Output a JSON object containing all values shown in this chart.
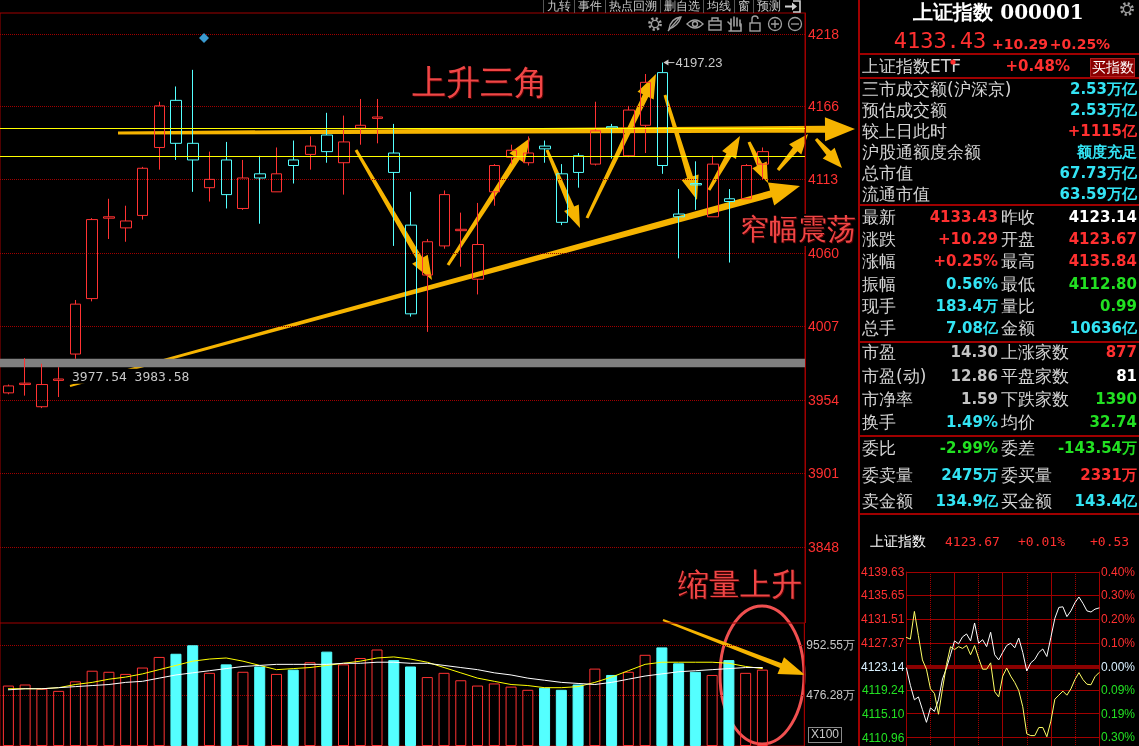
{
  "chart_data": [
    {
      "type": "candlestick",
      "categories": [
        null,
        null,
        null,
        null,
        null,
        null,
        null,
        null,
        null,
        null,
        null,
        null,
        null,
        null,
        null,
        null,
        null,
        null,
        null,
        null,
        null,
        null,
        null,
        null,
        null,
        null,
        null,
        null,
        null,
        null,
        null,
        null,
        null,
        null,
        null,
        null,
        null,
        null,
        null,
        null,
        null,
        null,
        null,
        null,
        null,
        null,
        null,
        null
      ],
      "ohlc": [
        [
          3959,
          3965,
          3958,
          3964
        ],
        [
          3965,
          3984,
          3957,
          3966
        ],
        [
          3949,
          3980,
          3948,
          3965
        ],
        [
          3968,
          3977.54,
          3956,
          3969
        ],
        [
          3987,
          4026,
          3983.58,
          4023
        ],
        [
          4027,
          4085,
          4025,
          4084
        ],
        [
          4085,
          4099,
          4070,
          4086
        ],
        [
          4078,
          4094,
          4068,
          4083
        ],
        [
          4087,
          4122,
          4084,
          4121
        ],
        [
          4136,
          4169,
          4120,
          4166
        ],
        [
          4170,
          4180,
          4127,
          4139
        ],
        [
          4139,
          4192,
          4104,
          4127
        ],
        [
          4107,
          4133,
          4097,
          4113
        ],
        [
          4127,
          4140,
          4092,
          4102
        ],
        [
          4092,
          4127,
          4091,
          4114
        ],
        [
          4117,
          4130,
          4081,
          4114
        ],
        [
          4104,
          4136,
          4104,
          4117
        ],
        [
          4127,
          4141,
          4110,
          4123
        ],
        [
          4131,
          4144,
          4120,
          4137
        ],
        [
          4145,
          4161,
          4125,
          4133
        ],
        [
          4125,
          4159,
          4102,
          4140
        ],
        [
          4150,
          4171,
          4138,
          4152
        ],
        [
          4157,
          4171,
          4139,
          4158
        ],
        [
          4132,
          4153,
          4065,
          4118
        ],
        [
          4080,
          4104,
          4014,
          4016
        ],
        [
          4044,
          4070,
          4003,
          4068
        ],
        [
          4065,
          4105,
          4063,
          4102
        ],
        [
          4076,
          4089,
          4050,
          4077
        ],
        [
          4041,
          4096,
          4030,
          4066
        ],
        [
          4104,
          4124,
          4094,
          4123
        ],
        [
          4129,
          4138,
          4124,
          4134
        ],
        [
          4125,
          4144,
          4123,
          4132
        ],
        [
          4137,
          4141,
          4125,
          4135
        ],
        [
          4117,
          4124,
          4080,
          4082
        ],
        [
          4130,
          4132,
          4107,
          4118
        ],
        [
          4124,
          4169,
          4123,
          4148
        ],
        [
          4151,
          4153,
          4128,
          4150
        ],
        [
          4130,
          4166,
          4129,
          4163
        ],
        [
          4152,
          4189,
          4132,
          4183
        ],
        [
          4190,
          4197.23,
          4117,
          4123
        ],
        [
          4088,
          4106,
          4056,
          4086
        ],
        [
          4110,
          4126,
          4091,
          4109
        ],
        [
          4086,
          4130,
          4086,
          4124
        ],
        [
          4099,
          4106,
          4053,
          4097
        ],
        [
          4099,
          4124,
          4099,
          4123
        ],
        [
          4124,
          4136,
          4113,
          4133
        ],
        null,
        null
      ],
      "colors": [
        "#ff3232",
        "#ff3232",
        "#ff3232",
        "#ff3232",
        "#ff3232",
        "#ff3232",
        "#ff3232",
        "#ff3232",
        "#ff3232",
        "#ff3232",
        "#54ffff",
        "#54ffff",
        "#ff3232",
        "#54ffff",
        "#ff3232",
        "#54ffff",
        "#ff3232",
        "#54ffff",
        "#ff3232",
        "#54ffff",
        "#ff3232",
        "#ff3232",
        "#ff3232",
        "#54ffff",
        "#54ffff",
        "#ff3232",
        "#ff3232",
        "#ff3232",
        "#ff3232",
        "#ff3232",
        "#ff3232",
        "#ff3232",
        "#54ffff",
        "#54ffff",
        "#54ffff",
        "#ff3232",
        "#54ffff",
        "#ff3232",
        "#ff3232",
        "#54ffff",
        "#54ffff",
        "#54ffff",
        "#ff3232",
        "#54ffff",
        "#ff3232",
        "#ff3232",
        null,
        null
      ],
      "ylim": [
        3793,
        4233
      ],
      "yticks": [
        4218,
        4166,
        4113,
        4060,
        4007,
        3954,
        3901,
        3848
      ],
      "grid": "y",
      "tick_labels": "y",
      "ref_lines": [
        {
          "axis": "y",
          "value": 4150,
          "color": "#ffff00"
        },
        {
          "axis": "y",
          "value": 4130,
          "color": "#ffff00"
        }
      ],
      "bands": [
        {
          "axis": "y",
          "from": 3977.54,
          "to": 3983.58,
          "label": "3977.54 3983.58",
          "color": "#808080"
        }
      ],
      "annotations": [
        "上升三角",
        "窄幅震荡",
        "4197.23",
        "九转",
        "事件",
        "热点回溯",
        "删自选",
        "均线",
        "窗",
        "预测"
      ]
    },
    {
      "type": "bar",
      "categories": [
        null,
        null,
        null,
        null,
        null,
        null,
        null,
        null,
        null,
        null,
        null,
        null,
        null,
        null,
        null,
        null,
        null,
        null,
        null,
        null,
        null,
        null,
        null,
        null,
        null,
        null,
        null,
        null,
        null,
        null,
        null,
        null,
        null,
        null,
        null,
        null,
        null,
        null,
        null,
        null,
        null,
        null,
        null,
        null,
        null,
        null,
        null,
        null
      ],
      "series": [
        {
          "type": "bar",
          "colors": [
            "#ff3232",
            "#ff3232",
            "#ff3232",
            "#ff3232",
            "#ff3232",
            "#ff3232",
            "#ff3232",
            "#ff3232",
            "#ff3232",
            "#ff3232",
            "#54ffff",
            "#54ffff",
            "#ff3232",
            "#54ffff",
            "#ff3232",
            "#54ffff",
            "#ff3232",
            "#54ffff",
            "#ff3232",
            "#54ffff",
            "#ff3232",
            "#ff3232",
            "#ff3232",
            "#54ffff",
            "#54ffff",
            "#ff3232",
            "#ff3232",
            "#ff3232",
            "#ff3232",
            "#ff3232",
            "#ff3232",
            "#ff3232",
            "#54ffff",
            "#54ffff",
            "#54ffff",
            "#ff3232",
            "#54ffff",
            "#ff3232",
            "#ff3232",
            "#54ffff",
            "#54ffff",
            "#54ffff",
            "#ff3232",
            "#54ffff",
            "#ff3232",
            "#ff3232",
            null,
            null
          ],
          "values": [
            570,
            580,
            540,
            520,
            610,
            710,
            700,
            680,
            740,
            840,
            870,
            950,
            690,
            770,
            700,
            750,
            680,
            720,
            790,
            890,
            770,
            830,
            910,
            810,
            750,
            650,
            690,
            620,
            570,
            590,
            560,
            530,
            550,
            530,
            580,
            730,
            670,
            700,
            860,
            930,
            780,
            700,
            670,
            810,
            690,
            720,
            null,
            null
          ]
        },
        {
          "type": "line",
          "color": "#ffff00",
          "values": [
            540,
            540,
            540,
            550,
            580,
            600,
            630,
            650,
            680,
            720,
            760,
            800,
            820,
            830,
            800,
            760,
            720,
            730,
            740,
            760,
            780,
            800,
            830,
            840,
            820,
            790,
            740,
            690,
            640,
            610,
            580,
            570,
            550,
            550,
            560,
            600,
            650,
            710,
            770,
            790,
            790,
            790,
            790,
            780,
            750,
            730,
            null,
            null
          ]
        },
        {
          "type": "line",
          "color": "#ffffff",
          "values": [
            530,
            540,
            540,
            550,
            560,
            570,
            580,
            600,
            610,
            640,
            670,
            690,
            710,
            730,
            750,
            760,
            770,
            770,
            770,
            770,
            780,
            780,
            790,
            790,
            780,
            780,
            760,
            740,
            720,
            690,
            670,
            640,
            620,
            600,
            590,
            580,
            600,
            630,
            660,
            680,
            700,
            710,
            720,
            730,
            740,
            740,
            null,
            null
          ]
        }
      ],
      "ylim": [
        0,
        1160
      ],
      "yticks": [
        {
          "value": 952.55,
          "label": "952.55万"
        },
        {
          "value": 476.28,
          "label": "476.28万"
        }
      ],
      "grid": "y",
      "tick_labels": "y",
      "marker": "none",
      "annotations": [
        "缩量上升",
        "X100"
      ]
    },
    {
      "type": "other",
      "title": "上证指数 000001",
      "annotations": [
        "4133.43",
        "+10.29",
        "+0.25%",
        "上证指数ETF",
        "+0.48%",
        "买指数",
        "三市成交额(沪深京)",
        "2.53万亿",
        "预估成交额",
        "2.53万亿",
        "较上日此时",
        "+1115亿",
        "沪股通额度余额",
        "额度充足",
        "总市值",
        "67.73万亿",
        "流通市值",
        "63.59万亿",
        "最新",
        "4133.43",
        "昨收",
        "4123.14",
        "涨跌",
        "+10.29",
        "开盘",
        "4123.67",
        "涨幅",
        "+0.25%",
        "最高",
        "4135.84",
        "振幅",
        "0.56%",
        "最低",
        "4112.80",
        "现手",
        "183.4万",
        "量比",
        "0.99",
        "总手",
        "7.08亿",
        "金额",
        "10636亿",
        "市盈",
        "14.30",
        "上涨家数",
        "877",
        "市盈(动)",
        "12.86",
        "平盘家数",
        "81",
        "市净率",
        "1.59",
        "下跌家数",
        "1390",
        "换手",
        "1.49%",
        "均价",
        "32.74",
        "委比",
        "-2.99%",
        "委差",
        "-143.54万",
        "委卖量",
        "2475万",
        "委买量",
        "2331万",
        "卖金额",
        "134.9亿",
        "买金额",
        "143.4亿"
      ]
    },
    {
      "type": "line",
      "title": "上证指数",
      "annotations": [
        "4123.67",
        "+0.01%",
        "+0.53"
      ],
      "categories": [
        null,
        null,
        null,
        null,
        null,
        null,
        null,
        null,
        null,
        null,
        null,
        null,
        null,
        null,
        null,
        null,
        null,
        null,
        null,
        null,
        null,
        null,
        null,
        null,
        null,
        null,
        null,
        null,
        null,
        null,
        null,
        null,
        null,
        null,
        null,
        null,
        null,
        null,
        null,
        null,
        null,
        null,
        null,
        null,
        null,
        null,
        null,
        null,
        null
      ],
      "series": [
        {
          "color": "#ffffff",
          "values": [
            4123.0,
            4120.0,
            4117.5,
            4118.0,
            4115.8,
            4113.6,
            4116.1,
            4115.5,
            4117.5,
            4121.1,
            4123.0,
            4125.3,
            4127.7,
            4127.2,
            4128.4,
            4128.9,
            4127.7,
            4130.8,
            4127.3,
            4127.9,
            4126.7,
            4129.2,
            4125.3,
            4124.4,
            4125.7,
            4126.9,
            4127.3,
            4126.5,
            4128.2,
            4125.7,
            4122.5,
            4123.9,
            4124.5,
            4125.7,
            4126.3,
            4125.0,
            4128.3,
            4131.6,
            4133.5,
            4133.6,
            4131.9,
            4132.9,
            4134.3,
            4135.3,
            4134.2,
            4132.9,
            4132.7,
            4133.2,
            4133.4
          ]
        },
        {
          "color": "#ffff66",
          "values": [
            4128.3,
            4128.0,
            4132.8,
            4128.6,
            4124.4,
            4122.8,
            4119.4,
            4118.6,
            4115.0,
            4119.4,
            4123.6,
            4126.7,
            4126.2,
            4126.7,
            4126.4,
            4126.9,
            4125.3,
            4126.9,
            4124.7,
            4122.8,
            4122.8,
            4123.9,
            4118.9,
            4118.0,
            4121.6,
            4123.0,
            4121.6,
            4120.5,
            4119.1,
            4116.3,
            4111.6,
            4111.3,
            4111.3,
            4112.7,
            4112.7,
            4111.1,
            4113.8,
            4117.6,
            4118.3,
            4119.0,
            4118.3,
            4119.4,
            4121.0,
            4122.2,
            4121.0,
            4120.2,
            4120.1,
            4121.5,
            4122.2
          ]
        }
      ],
      "ylim": [
        4109.5,
        4139.63
      ],
      "yticks": [
        4139.63,
        4135.65,
        4131.51,
        4127.37,
        4123.14,
        4119.24,
        {
          "value": 4115.1,
          "label": "4115.10"
        },
        4110.96
      ],
      "y2lim": [
        -0.331,
        0.4
      ],
      "y2ticks": [
        {
          "value": 0.4,
          "label": "0.40%"
        },
        {
          "value": 0.303,
          "label": "0.30%"
        },
        {
          "value": 0.203,
          "label": "0.20%"
        },
        {
          "value": 0.103,
          "label": "0.10%"
        },
        {
          "value": 0,
          "label": "0.00%"
        },
        {
          "value": -0.095,
          "label": "0.09%"
        },
        {
          "value": -0.195,
          "label": "0.19%"
        },
        {
          "value": -0.295,
          "label": "0.30%"
        }
      ],
      "ref_lines": [
        {
          "axis": "y",
          "value": 4123.14,
          "color": "#8b0000"
        }
      ],
      "grid": true,
      "tick_labels": "y",
      "marker": "none"
    }
  ]
}
